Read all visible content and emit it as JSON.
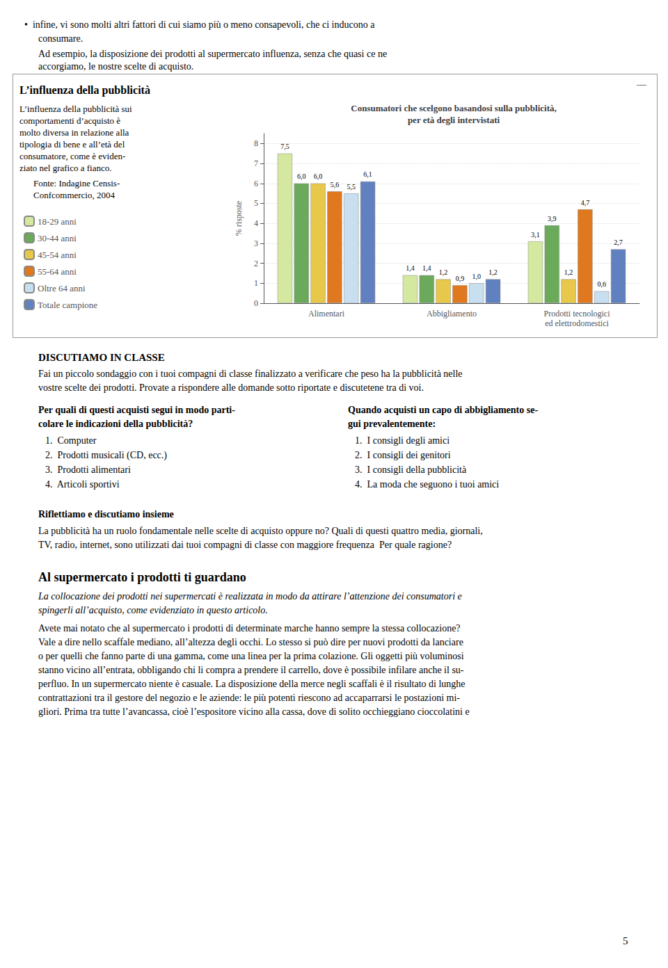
{
  "chart_data": {
    "type": "bar",
    "title": "Consumatori che scelgono basandosi sulla pubblicità,\nper età degli intervistati",
    "ylabel": "% risposte",
    "categories": [
      "Alimentari",
      "Abbigliamento",
      "Prodotti tecnologici\ned elettrodomestici"
    ],
    "series": [
      {
        "name": "18-29 anni",
        "color": "#d4e8a0",
        "values": [
          7.5,
          1.4,
          3.1
        ],
        "value_labels": [
          "7,5",
          "1,4",
          "3,1"
        ]
      },
      {
        "name": "30-44 anni",
        "color": "#6aaa5a",
        "values": [
          6.0,
          1.4,
          3.9
        ],
        "value_labels": [
          "6,0",
          "1,4",
          "3,9"
        ]
      },
      {
        "name": "45-54 anni",
        "color": "#e8c84a",
        "values": [
          6.0,
          1.2,
          1.2
        ],
        "value_labels": [
          "6,0",
          "1,2",
          "1,2"
        ]
      },
      {
        "name": "55-64 anni",
        "color": "#e07820",
        "values": [
          5.6,
          0.9,
          4.7
        ],
        "value_labels": [
          "5,6",
          "0,9",
          "4,7"
        ]
      },
      {
        "name": "Oltre 64 anni",
        "color": "#c8dff0",
        "values": [
          5.5,
          1.0,
          0.6
        ],
        "value_labels": [
          "5,5",
          "1,0",
          "0,6"
        ]
      },
      {
        "name": "Totale campione",
        "color": "#6080c0",
        "values": [
          6.1,
          1.2,
          2.7
        ],
        "value_labels": [
          "6,1",
          "1,2",
          "2,7"
        ]
      }
    ],
    "ylim": [
      0,
      8.5
    ],
    "yticks": [
      0,
      1,
      2,
      3,
      4,
      5,
      6,
      7,
      8
    ],
    "grid": true,
    "legend": "left",
    "data_labels": true,
    "annotations": [
      "•  infine, vi sono molti altri fattori di cui siamo più o meno consapevoli, che ci inducono a",
      "consumare.",
      "Ad esempio, la disposizione dei prodotti al supermercato influenza, senza che quasi ce ne",
      "accorgiamo, le nostre scelte di acquisto.",
      "L’influenza della pubblicità",
      "—",
      "L’influenza della pubblicità sui",
      "comportamenti d’acquisto è",
      "molto diversa in relazione alla",
      "tipologia di bene e all’età del",
      "consumatore, come è eviden-",
      "ziato nel grafico a fianco.",
      "Fonte: Indagine Censis-",
      "Confcommercio, 2004",
      "DISCUTIAMO IN CLASSE",
      "Fai un piccolo sondaggio con i tuoi compagni di classe finalizzato a verificare che peso ha la pubblicità nelle",
      "vostre scelte dei prodotti. Provate a rispondere alle domande sotto riportate e discutetene tra di voi.",
      "Per quali di questi acquisti segui in modo parti-",
      "colare le indicazioni della pubblicità?",
      "Quando acquisti un capo di abbigliamento se-",
      "gui prevalentemente:",
      "1.  Computer",
      "2.  Prodotti musicali (CD, ecc.)",
      "3.  Prodotti alimentari",
      "4.  Articoli sportivi",
      "1.  I consigli degli amici",
      "2.  I consigli dei genitori",
      "3.  I consigli della pubblicità",
      "4.  La moda che seguono i tuoi amici",
      "Riflettiamo e discutiamo insieme",
      "La pubblicità ha un ruolo fondamentale nelle scelte di acquisto oppure no? Quali di questi quattro media, giornali,",
      "TV, radio, internet, sono utilizzati dai tuoi compagni di classe con maggiore frequenza  Per quale ragione?",
      "Al supermercato i prodotti ti guardano",
      "La collocazione dei prodotti nei supermercati è realizzata in modo da attirare l’attenzione dei consumatori e",
      "spingerli all’acquisto, come evidenziato in questo articolo.",
      "Avete mai notato che al supermercato i prodotti di determinate marche hanno sempre la stessa collocazione?",
      "Vale a dire nello scaffale mediano, all’altezza degli occhi. Lo stesso si può dire per nuovi prodotti da lanciare",
      "o per quelli che fanno parte di una gamma, come una linea per la prima colazione. Gli oggetti più voluminosi",
      "stanno vicino all’entrata, obbligando chi li compra a prendere il carrello, dove è possibile infilare anche il su-",
      "perfluo. In un supermercato niente è casuale. La disposizione della merce negli scaffali è il risultato di lunghe",
      "contrattazioni tra il gestore del negozio e le aziende: le più potenti riescono ad accaparrarsi le postazioni mi-",
      "gliori. Prima tra tutte l’avancassa, cioè l’espositore vicino alla cassa, dove di solito occhieggiano cioccolatini e",
      "5"
    ]
  }
}
